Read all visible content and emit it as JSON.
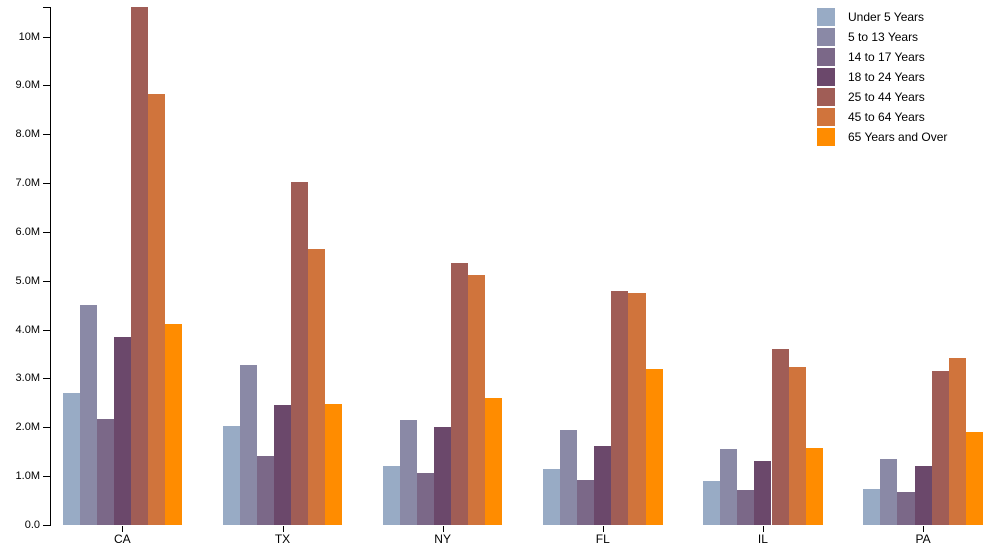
{
  "chart_data": {
    "type": "bar",
    "title": "",
    "categories": [
      "CA",
      "TX",
      "NY",
      "FL",
      "IL",
      "PA"
    ],
    "series": [
      {
        "name": "Under 5 Years",
        "color": "#98abc5",
        "values": [
          2704659,
          2027307,
          1208495,
          1140516,
          894368,
          737462
        ]
      },
      {
        "name": "5 to 13 Years",
        "color": "#8a89a6",
        "values": [
          4499890,
          3277946,
          2141490,
          1938695,
          1558919,
          1345341
        ]
      },
      {
        "name": "14 to 17 Years",
        "color": "#7b6888",
        "values": [
          2159981,
          1420518,
          1058031,
          925060,
          725973,
          679201
        ]
      },
      {
        "name": "18 to 24 Years",
        "color": "#6b486b",
        "values": [
          3853788,
          2454721,
          1999120,
          1607297,
          1311479,
          1203944
        ]
      },
      {
        "name": "25 to 44 Years",
        "color": "#a05d56",
        "values": [
          10604510,
          7017731,
          5355235,
          4782119,
          3596343,
          3157759
        ]
      },
      {
        "name": "45 to 64 Years",
        "color": "#d0743c",
        "values": [
          8819342,
          5656528,
          5120254,
          4746856,
          3239173,
          3414001
        ]
      },
      {
        "name": "65 Years and Over",
        "color": "#ff8c00",
        "values": [
          4114496,
          2472223,
          2607672,
          3187797,
          1575308,
          1910571
        ]
      }
    ],
    "y_axis": {
      "ticks": [
        "0.0",
        "1.0M",
        "2.0M",
        "3.0M",
        "4.0M",
        "5.0M",
        "6.0M",
        "7.0M",
        "8.0M",
        "9.0M",
        "10M"
      ],
      "tick_values": [
        0,
        1000000,
        2000000,
        3000000,
        4000000,
        5000000,
        6000000,
        7000000,
        8000000,
        9000000,
        10000000
      ],
      "max_value": 10604510
    },
    "xlabel": "",
    "ylabel": "",
    "grid": false,
    "legend_position": "top-right"
  }
}
